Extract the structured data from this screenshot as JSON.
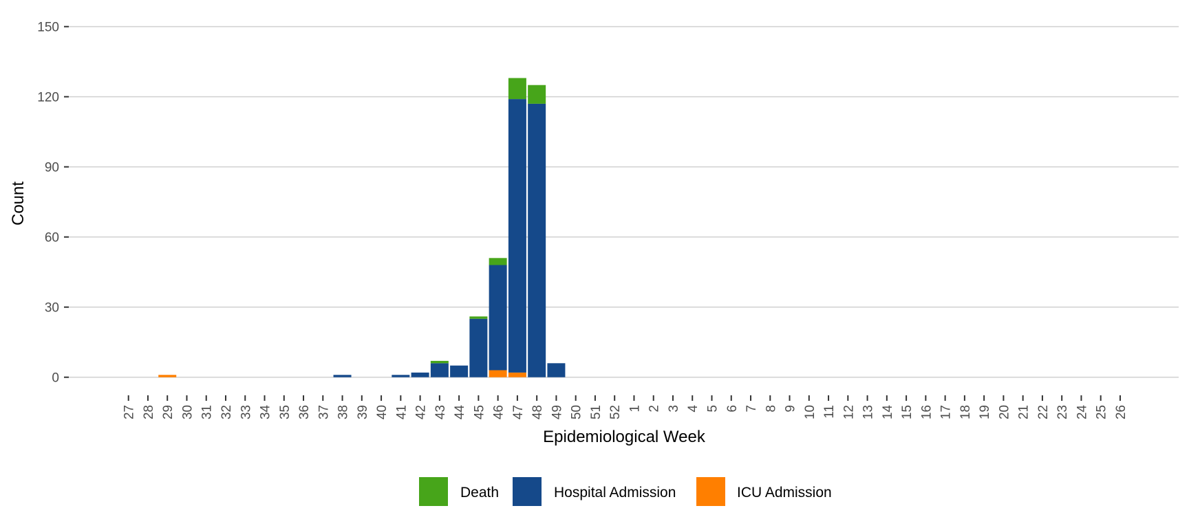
{
  "chart_data": {
    "type": "bar",
    "stacked": true,
    "title": "",
    "xlabel": "Epidemiological Week",
    "ylabel": "Count",
    "ylim": [
      0,
      150
    ],
    "yticks": [
      0,
      30,
      60,
      90,
      120,
      150
    ],
    "grid": "horizontal",
    "legend_position": "bottom",
    "categories": [
      "27",
      "28",
      "29",
      "30",
      "31",
      "32",
      "33",
      "34",
      "35",
      "36",
      "37",
      "38",
      "39",
      "40",
      "41",
      "42",
      "43",
      "44",
      "45",
      "46",
      "47",
      "48",
      "49",
      "50",
      "51",
      "52",
      "1",
      "2",
      "3",
      "4",
      "5",
      "6",
      "7",
      "8",
      "9",
      "10",
      "11",
      "12",
      "13",
      "14",
      "15",
      "16",
      "17",
      "18",
      "19",
      "20",
      "21",
      "22",
      "23",
      "24",
      "25",
      "26"
    ],
    "series": [
      {
        "name": "ICU Admission",
        "color": "#FF7F00",
        "values": [
          0,
          0,
          1,
          0,
          0,
          0,
          0,
          0,
          0,
          0,
          0,
          0,
          0,
          0,
          0,
          0,
          0,
          0,
          0,
          3,
          2,
          0,
          0,
          0,
          0,
          0,
          0,
          0,
          0,
          0,
          0,
          0,
          0,
          0,
          0,
          0,
          0,
          0,
          0,
          0,
          0,
          0,
          0,
          0,
          0,
          0,
          0,
          0,
          0,
          0,
          0,
          0
        ]
      },
      {
        "name": "Hospital Admission",
        "color": "#15498A",
        "values": [
          0,
          0,
          0,
          0,
          0,
          0,
          0,
          0,
          0,
          0,
          0,
          1,
          0,
          0,
          1,
          2,
          6,
          5,
          25,
          45,
          117,
          117,
          6,
          0,
          0,
          0,
          0,
          0,
          0,
          0,
          0,
          0,
          0,
          0,
          0,
          0,
          0,
          0,
          0,
          0,
          0,
          0,
          0,
          0,
          0,
          0,
          0,
          0,
          0,
          0,
          0,
          0
        ]
      },
      {
        "name": "Death",
        "color": "#47A51A",
        "values": [
          0,
          0,
          0,
          0,
          0,
          0,
          0,
          0,
          0,
          0,
          0,
          0,
          0,
          0,
          0,
          0,
          1,
          0,
          1,
          3,
          9,
          8,
          0,
          0,
          0,
          0,
          0,
          0,
          0,
          0,
          0,
          0,
          0,
          0,
          0,
          0,
          0,
          0,
          0,
          0,
          0,
          0,
          0,
          0,
          0,
          0,
          0,
          0,
          0,
          0,
          0,
          0
        ]
      }
    ],
    "legend": [
      {
        "name": "Death",
        "color": "#47A51A"
      },
      {
        "name": "Hospital Admission",
        "color": "#15498A"
      },
      {
        "name": "ICU Admission",
        "color": "#FF7F00"
      }
    ]
  }
}
